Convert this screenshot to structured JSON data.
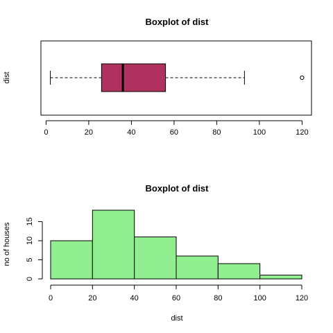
{
  "chart_data": [
    {
      "type": "boxplot",
      "title": "Boxplot of dist",
      "ylabel": "dist",
      "xlim": [
        0,
        120
      ],
      "ticks": [
        0,
        20,
        40,
        60,
        80,
        100,
        120
      ],
      "stats": {
        "whisker_low": 2,
        "q1": 26,
        "median": 36,
        "q3": 56,
        "whisker_high": 93
      },
      "outliers": [
        120
      ],
      "box_color": "#B03060",
      "grid": false
    },
    {
      "type": "histogram",
      "title": "Boxplot of dist",
      "xlabel": "dist",
      "ylabel": "no of houses",
      "bins": [
        {
          "from": 0,
          "to": 20,
          "count": 10
        },
        {
          "from": 20,
          "to": 40,
          "count": 18
        },
        {
          "from": 40,
          "to": 60,
          "count": 11
        },
        {
          "from": 60,
          "to": 80,
          "count": 6
        },
        {
          "from": 80,
          "to": 100,
          "count": 4
        },
        {
          "from": 100,
          "to": 120,
          "count": 1
        }
      ],
      "xticks": [
        0,
        20,
        40,
        60,
        80,
        100,
        120
      ],
      "yticks": [
        0,
        5,
        10,
        15
      ],
      "ylim": [
        0,
        18
      ],
      "bar_color": "#90EE90",
      "grid": false
    }
  ]
}
